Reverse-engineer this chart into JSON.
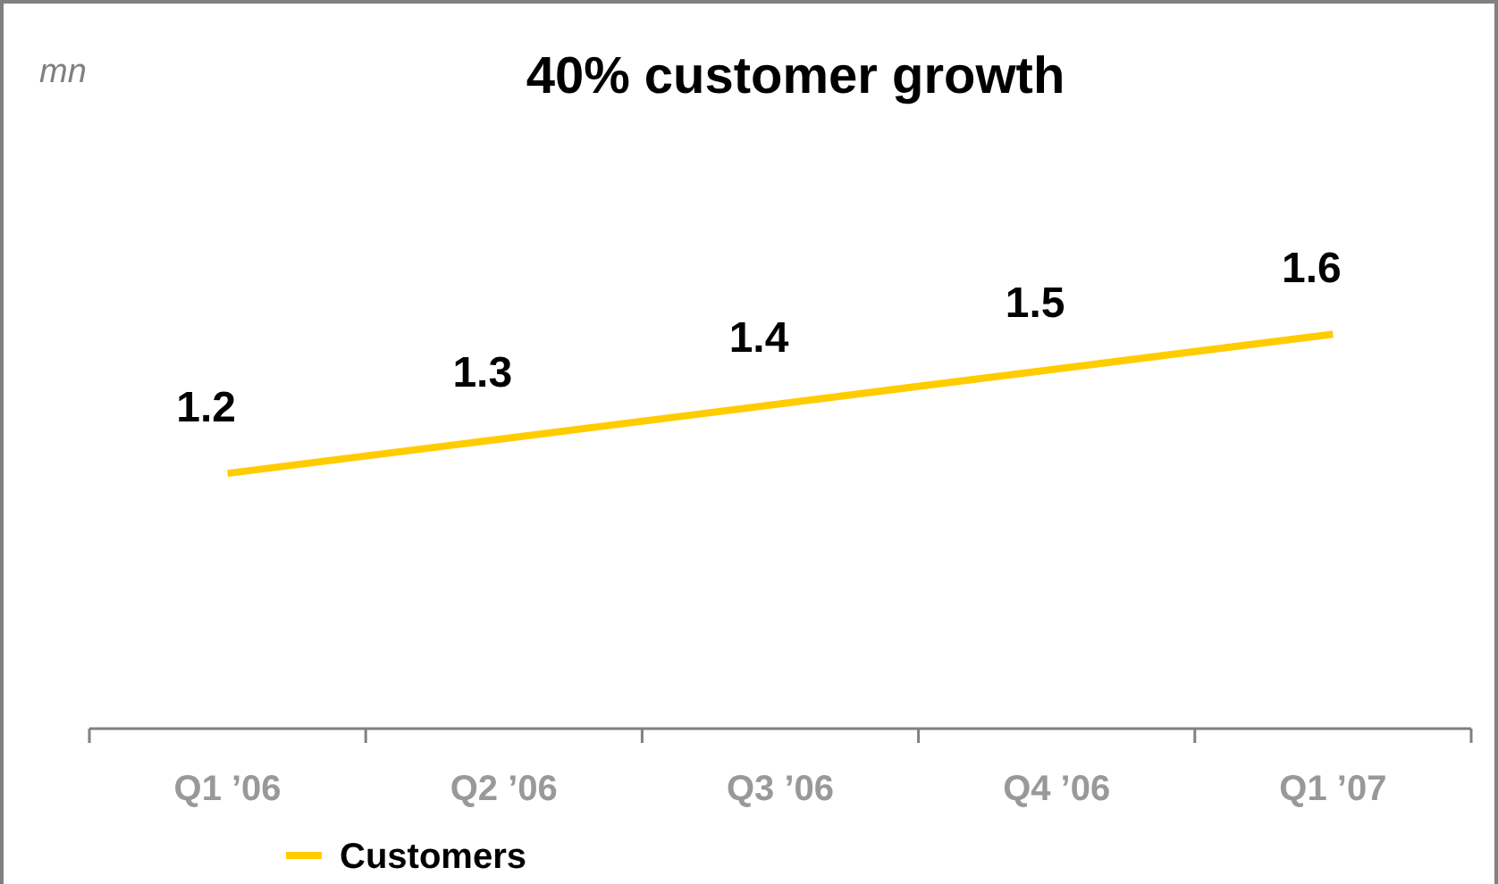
{
  "chart_data": {
    "type": "line",
    "title": "40% customer growth",
    "annotations": [
      "mn"
    ],
    "categories": [
      "Q1 ’06",
      "Q2 ’06",
      "Q3 ’06",
      "Q4 ’06",
      "Q1 ’07"
    ],
    "series": [
      {
        "name": "Customers",
        "color": "#ffcc00",
        "values": [
          1.2,
          1.3,
          1.4,
          1.5,
          1.6
        ]
      }
    ],
    "data_labels": true,
    "legend": "bottom left",
    "marker": "none"
  }
}
